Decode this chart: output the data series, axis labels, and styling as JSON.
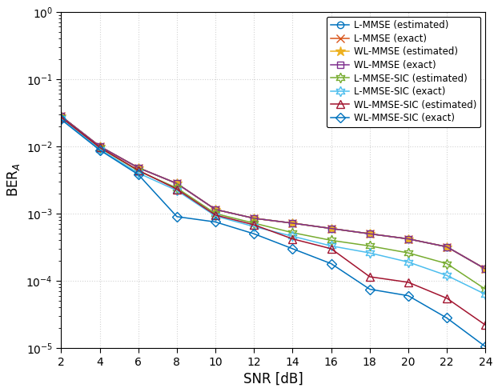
{
  "snr": [
    2,
    4,
    6,
    8,
    10,
    12,
    14,
    16,
    18,
    20,
    22,
    24
  ],
  "series": [
    {
      "label": "L-MMSE (estimated)",
      "color": "#0072BD",
      "marker": "o",
      "mfc": "none",
      "mec": "#0072BD",
      "ms": 6,
      "lw": 1.1,
      "values": [
        0.028,
        0.01,
        0.0048,
        0.0028,
        0.00115,
        0.00085,
        0.00072,
        0.0006,
        0.0005,
        0.00042,
        0.00032,
        0.00015
      ]
    },
    {
      "label": "L-MMSE (exact)",
      "color": "#D95319",
      "marker": "x",
      "mfc": "#D95319",
      "mec": "#D95319",
      "ms": 7,
      "lw": 1.1,
      "values": [
        0.028,
        0.01,
        0.0048,
        0.0028,
        0.00115,
        0.00085,
        0.00072,
        0.0006,
        0.0005,
        0.00042,
        0.00032,
        0.00015
      ]
    },
    {
      "label": "WL-MMSE (estimated)",
      "color": "#EDB120",
      "marker": "*",
      "mfc": "#EDB120",
      "mec": "#EDB120",
      "ms": 9,
      "lw": 1.1,
      "values": [
        0.028,
        0.01,
        0.0048,
        0.0028,
        0.00115,
        0.00085,
        0.00072,
        0.0006,
        0.0005,
        0.00042,
        0.00032,
        0.00015
      ]
    },
    {
      "label": "WL-MMSE (exact)",
      "color": "#7E2F8E",
      "marker": "s",
      "mfc": "none",
      "mec": "#7E2F8E",
      "ms": 6,
      "lw": 1.1,
      "values": [
        0.028,
        0.01,
        0.0048,
        0.0028,
        0.00115,
        0.00085,
        0.00072,
        0.0006,
        0.0005,
        0.00042,
        0.00032,
        0.00015
      ]
    },
    {
      "label": "L-MMSE-SIC (estimated)",
      "color": "#77AC30",
      "marker": "h",
      "mfc": "none",
      "mec": "#77AC30",
      "ms": 9,
      "lw": 1.1,
      "values": [
        0.027,
        0.0095,
        0.0043,
        0.0024,
        0.001,
        0.00072,
        0.00052,
        0.0004,
        0.00033,
        0.00026,
        0.00018,
        7.5e-05
      ]
    },
    {
      "label": "L-MMSE-SIC (exact)",
      "color": "#4DBEEE",
      "marker": "h",
      "mfc": "none",
      "mec": "#4DBEEE",
      "ms": 9,
      "lw": 1.1,
      "values": [
        0.026,
        0.009,
        0.004,
        0.0022,
        0.00092,
        0.00064,
        0.00046,
        0.00033,
        0.00026,
        0.00019,
        0.00012,
        6.3e-05
      ]
    },
    {
      "label": "WL-MMSE-SIC (estimated)",
      "color": "#A2142F",
      "marker": "^",
      "mfc": "none",
      "mec": "#A2142F",
      "ms": 7,
      "lw": 1.1,
      "values": [
        0.027,
        0.0096,
        0.0044,
        0.0023,
        0.00095,
        0.00068,
        0.00042,
        0.0003,
        0.000115,
        9.5e-05,
        5.5e-05,
        2.2e-05
      ]
    },
    {
      "label": "WL-MMSE-SIC (exact)",
      "color": "#0072BD",
      "marker": "D",
      "mfc": "none",
      "mec": "#0072BD",
      "ms": 6,
      "lw": 1.1,
      "values": [
        0.025,
        0.0088,
        0.0038,
        0.0009,
        0.00075,
        0.0005,
        0.0003,
        0.00018,
        7.5e-05,
        6e-05,
        2.8e-05,
        1.05e-05
      ]
    }
  ],
  "xlabel": "SNR [dB]",
  "ylabel": "BER$_A$",
  "xlim": [
    2,
    24
  ],
  "ylim": [
    1e-05,
    1
  ],
  "xticks": [
    2,
    4,
    6,
    8,
    10,
    12,
    14,
    16,
    18,
    20,
    22,
    24
  ],
  "yticks": [
    1e-05,
    0.0001,
    0.001,
    0.01,
    0.1,
    1.0
  ],
  "grid_color": "#D3D3D3",
  "bg_color": "#FFFFFF",
  "legend_fontsize": 8.5,
  "tick_fontsize": 10,
  "label_fontsize": 12
}
